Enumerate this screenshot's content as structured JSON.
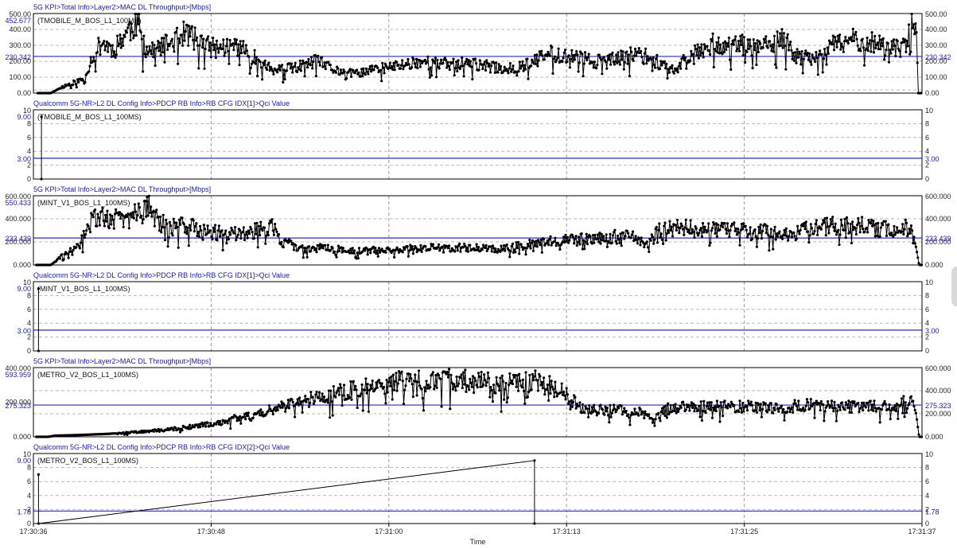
{
  "colors": {
    "title": "#1a1aa8",
    "avg_line": "#2b2bb8",
    "trace": "#000000",
    "frame": "#000000",
    "grid_h": "#b8b8b8",
    "grid_v": "#9a9a9a",
    "tick_blue": "#1a1aa8"
  },
  "time_axis": {
    "label": "Time",
    "start_s": 0,
    "end_s": 61,
    "ticks": [
      {
        "t": 0,
        "label": "17:30:36"
      },
      {
        "t": 12.2,
        "label": "17:30:48"
      },
      {
        "t": 24.4,
        "label": "17:31:00"
      },
      {
        "t": 36.6,
        "label": "17:31:13"
      },
      {
        "t": 48.8,
        "label": "17:31:25"
      },
      {
        "t": 61,
        "label": "17:31:37"
      }
    ]
  },
  "chart_data": [
    {
      "type": "line",
      "title": "5G KPI>Total Info>Layer2>MAC DL Throughput>[Mbps]",
      "legend": "(TMOBILE_M_BOS_L1_100MS)",
      "ylim": [
        0,
        500
      ],
      "left_ticks": [
        "0.00",
        "100.00",
        "200.00",
        "300.00",
        "400.00",
        "500.00"
      ],
      "right_ticks": [
        "0.00",
        "100.00",
        "200.00",
        "300.00",
        "400.00",
        "500.00"
      ],
      "max_label": "452.677",
      "avg": 230.342,
      "avg_label": "230.342",
      "grid_dashes": [
        20,
        100,
        200,
        300,
        400
      ],
      "series": [
        {
          "name": "TMOBILE_M_BOS_L1_100MS",
          "segments": [
            [
              0.3,
              0
            ],
            [
              1.2,
              0
            ],
            [
              2.0,
              40
            ],
            [
              3.5,
              90
            ],
            [
              4.0,
              220
            ],
            [
              4.7,
              320
            ],
            [
              5.5,
              270
            ],
            [
              6.2,
              360
            ],
            [
              6.8,
              420
            ],
            [
              7.2,
              452.677
            ],
            [
              7.5,
              300
            ],
            [
              8.2,
              260
            ],
            [
              9.5,
              320
            ],
            [
              10.5,
              380
            ],
            [
              11.5,
              310
            ],
            [
              12.5,
              280
            ],
            [
              14.0,
              300
            ],
            [
              15.5,
              200
            ],
            [
              16.5,
              140
            ],
            [
              18.0,
              160
            ],
            [
              19.5,
              200
            ],
            [
              20.5,
              150
            ],
            [
              22.0,
              120
            ],
            [
              23.5,
              150
            ],
            [
              25.0,
              170
            ],
            [
              26.5,
              200
            ],
            [
              28.0,
              180
            ],
            [
              29.5,
              190
            ],
            [
              31.0,
              170
            ],
            [
              32.5,
              150
            ],
            [
              34.0,
              180
            ],
            [
              35.5,
              250
            ],
            [
              37.0,
              230
            ],
            [
              38.5,
              200
            ],
            [
              40.0,
              210
            ],
            [
              41.5,
              250
            ],
            [
              43.0,
              190
            ],
            [
              44.0,
              140
            ],
            [
              45.0,
              240
            ],
            [
              46.5,
              310
            ],
            [
              48.0,
              300
            ],
            [
              49.5,
              300
            ],
            [
              50.5,
              290
            ],
            [
              51.5,
              340
            ],
            [
              52.5,
              220
            ],
            [
              53.5,
              230
            ],
            [
              55.0,
              300
            ],
            [
              56.5,
              340
            ],
            [
              58.0,
              310
            ],
            [
              59.5,
              270
            ],
            [
              60.3,
              420
            ],
            [
              60.6,
              440
            ],
            [
              60.75,
              0
            ],
            [
              61.0,
              0
            ]
          ],
          "noise": 0.22,
          "seed": 11
        }
      ]
    },
    {
      "type": "line",
      "title": "Qualcomm 5G-NR>L2 DL Config Info>PDCP RB Info>RB CFG IDX[1]>Qci Value",
      "legend": "(TMOBILE_M_BOS_L1_100MS)",
      "ylim": [
        0,
        10
      ],
      "left_ticks": [
        "0",
        "2",
        "4",
        "6",
        "8",
        "10"
      ],
      "right_ticks": [
        "0",
        "2",
        "4",
        "6",
        "8",
        "10"
      ],
      "max_label": "9.00",
      "avg": 3.0,
      "avg_label": "3.00",
      "grid_dashes": [
        2,
        4,
        6,
        8
      ],
      "series": [
        {
          "name": "TMOBILE_M_BOS_L1_100MS",
          "points": [
            [
              0.55,
              9
            ],
            [
              0.55,
              0
            ]
          ]
        }
      ]
    },
    {
      "type": "line",
      "title": "5G KPI>Total Info>Layer2>MAC DL Throughput>[Mbps]",
      "legend": "(MINT_V1_BOS_L1_100MS)",
      "ylim": [
        0,
        600
      ],
      "left_ticks": [
        "0.000",
        "200.000",
        "400.000",
        "600.000"
      ],
      "right_ticks": [
        "0.000",
        "200.000",
        "400.000",
        "600.000"
      ],
      "max_label": "550.433",
      "avg": 233.439,
      "avg_label": "233.439",
      "grid_dashes": [
        200,
        400
      ],
      "series": [
        {
          "name": "MINT_V1_BOS_L1_100MS",
          "segments": [
            [
              0.2,
              0
            ],
            [
              1.2,
              0
            ],
            [
              2.0,
              80
            ],
            [
              3.0,
              150
            ],
            [
              3.5,
              250
            ],
            [
              4.0,
              380
            ],
            [
              5.0,
              430
            ],
            [
              6.0,
              380
            ],
            [
              7.0,
              440
            ],
            [
              7.8,
              550.433
            ],
            [
              8.5,
              380
            ],
            [
              9.5,
              320
            ],
            [
              10.5,
              350
            ],
            [
              11.5,
              320
            ],
            [
              12.5,
              280
            ],
            [
              13.5,
              260
            ],
            [
              15.0,
              290
            ],
            [
              16.5,
              330
            ],
            [
              17.0,
              200
            ],
            [
              18.5,
              140
            ],
            [
              20.0,
              150
            ],
            [
              22.0,
              120
            ],
            [
              24.0,
              130
            ],
            [
              26.0,
              140
            ],
            [
              28.0,
              150
            ],
            [
              30.0,
              150
            ],
            [
              32.0,
              140
            ],
            [
              34.0,
              180
            ],
            [
              36.0,
              220
            ],
            [
              38.0,
              220
            ],
            [
              40.0,
              250
            ],
            [
              41.5,
              230
            ],
            [
              42.0,
              160
            ],
            [
              43.0,
              300
            ],
            [
              44.5,
              320
            ],
            [
              46.0,
              300
            ],
            [
              48.0,
              300
            ],
            [
              50.0,
              290
            ],
            [
              51.5,
              250
            ],
            [
              53.0,
              300
            ],
            [
              55.0,
              340
            ],
            [
              57.0,
              340
            ],
            [
              59.0,
              300
            ],
            [
              60.2,
              330
            ],
            [
              60.6,
              150
            ],
            [
              60.8,
              0
            ],
            [
              61.0,
              0
            ]
          ],
          "noise": 0.24,
          "seed": 29
        }
      ]
    },
    {
      "type": "line",
      "title": "Qualcomm 5G-NR>L2 DL Config Info>PDCP RB Info>RB CFG IDX[1]>Qci Value",
      "legend": "(MINT_V1_BOS_L1_100MS)",
      "ylim": [
        0,
        10
      ],
      "left_ticks": [
        "0",
        "2",
        "4",
        "6",
        "8",
        "10"
      ],
      "right_ticks": [
        "0",
        "2",
        "4",
        "6",
        "8",
        "10"
      ],
      "max_label": "9.00",
      "avg": 3.0,
      "avg_label": "3.00",
      "grid_dashes": [
        2,
        4,
        6,
        8
      ],
      "series": [
        {
          "name": "MINT_V1_BOS_L1_100MS",
          "points": [
            [
              0.35,
              9
            ],
            [
              0.35,
              0
            ]
          ]
        }
      ]
    },
    {
      "type": "line",
      "title": "5G KPI>Total Info>Layer2>MAC DL Throughput>[Mbps]",
      "legend": "(METRO_V2_BOS_L1_100MS)",
      "ylim": [
        0,
        600
      ],
      "left_ticks": [
        "0.000",
        "200.000",
        "400.000"
      ],
      "right_ticks": [
        "0.000",
        "200.000",
        "400.000",
        "600.000"
      ],
      "max_label": "593.959",
      "avg": 275.323,
      "avg_label": "275.323",
      "grid_dashes": [
        200,
        400
      ],
      "series": [
        {
          "name": "METRO_V2_BOS_L1_100MS",
          "segments": [
            [
              0.2,
              0
            ],
            [
              1.0,
              0
            ],
            [
              1.5,
              10
            ],
            [
              3.0,
              15
            ],
            [
              5.0,
              25
            ],
            [
              7.0,
              40
            ],
            [
              9.0,
              60
            ],
            [
              11.0,
              90
            ],
            [
              13.0,
              130
            ],
            [
              14.5,
              180
            ],
            [
              16.0,
              230
            ],
            [
              17.0,
              260
            ],
            [
              18.0,
              300
            ],
            [
              19.5,
              340
            ],
            [
              21.0,
              380
            ],
            [
              22.5,
              420
            ],
            [
              24.0,
              450
            ],
            [
              25.5,
              490
            ],
            [
              27.0,
              480
            ],
            [
              28.5,
              500
            ],
            [
              30.0,
              480
            ],
            [
              31.5,
              470
            ],
            [
              33.0,
              460
            ],
            [
              34.5,
              480
            ],
            [
              36.0,
              420
            ],
            [
              36.8,
              350
            ],
            [
              37.5,
              250
            ],
            [
              38.5,
              230
            ],
            [
              40.0,
              230
            ],
            [
              41.5,
              220
            ],
            [
              42.5,
              150
            ],
            [
              43.5,
              240
            ],
            [
              45.0,
              260
            ],
            [
              47.0,
              260
            ],
            [
              49.0,
              260
            ],
            [
              51.0,
              240
            ],
            [
              53.0,
              280
            ],
            [
              55.0,
              260
            ],
            [
              57.0,
              260
            ],
            [
              59.0,
              260
            ],
            [
              60.3,
              320
            ],
            [
              60.6,
              200
            ],
            [
              60.8,
              0
            ],
            [
              61.0,
              0
            ]
          ],
          "noise": 0.2,
          "seed": 47
        }
      ]
    },
    {
      "type": "line",
      "title": "Qualcomm 5G-NR>L2 DL Config Info>PDCP RB Info>RB CFG IDX[2]>Qci Value",
      "legend": "(METRO_V2_BOS_L1_100MS)",
      "ylim": [
        0,
        10
      ],
      "left_ticks": [
        "0",
        "2",
        "4",
        "6",
        "8",
        "10"
      ],
      "right_ticks": [
        "0",
        "2",
        "4",
        "6",
        "8",
        "10"
      ],
      "max_label": "9.00",
      "avg": 1.78,
      "avg_label": "1.78",
      "grid_dashes": [
        2,
        4,
        6,
        8
      ],
      "series": [
        {
          "name": "METRO_V2_BOS_L1_100MS",
          "points": [
            [
              0.35,
              7
            ],
            [
              0.35,
              0
            ],
            [
              34.4,
              9
            ],
            [
              34.4,
              0
            ]
          ]
        }
      ]
    }
  ]
}
